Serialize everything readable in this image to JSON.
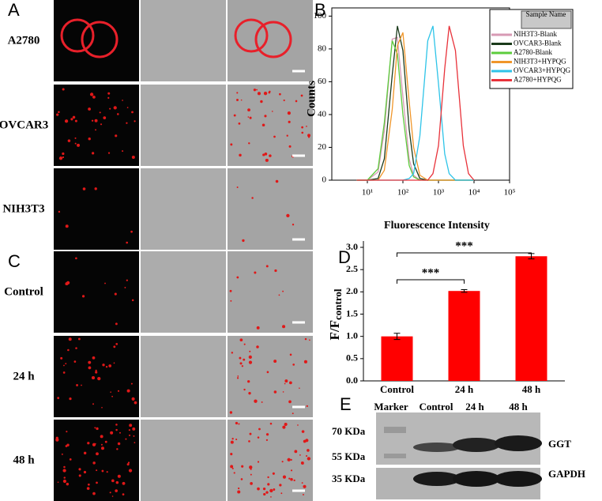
{
  "panels": {
    "a_label": "A",
    "a_rows": [
      "A2780",
      "OVCAR3",
      "NIH3T3"
    ],
    "c_label": "C",
    "c_rows": [
      "Control",
      "24 h",
      "48 h"
    ]
  },
  "chart_data": [
    {
      "type": "line",
      "panel_label": "B",
      "y_label": "Counts",
      "legend_title": "Sample Name",
      "log_x": true,
      "x": [
        5,
        10,
        20,
        30,
        50,
        70,
        100,
        150,
        200,
        300,
        500,
        700,
        1000,
        1500,
        2000,
        3000,
        5000,
        7000,
        10000
      ],
      "xlim": [
        1,
        100000
      ],
      "xticks": [
        {
          "value": 10,
          "label": "10¹"
        },
        {
          "value": 100,
          "label": "10²"
        },
        {
          "value": 1000,
          "label": "10³"
        },
        {
          "value": 10000,
          "label": "10⁴"
        },
        {
          "value": 100000,
          "label": "10⁵"
        }
      ],
      "ylim": [
        0,
        105
      ],
      "yticks": [
        0,
        20,
        40,
        60,
        80,
        100
      ],
      "series": [
        {
          "name": "NIH3T3-Blank",
          "color": "#d79ab4",
          "values": [
            0,
            0,
            5,
            30,
            86,
            87,
            51,
            13,
            3,
            0,
            0,
            0,
            0,
            0,
            0,
            0,
            0,
            0,
            0
          ]
        },
        {
          "name": "OVCAR3-Blank",
          "color": "#1a3a1a",
          "values": [
            0,
            0,
            1,
            13,
            64,
            94,
            79,
            31,
            10,
            1,
            0,
            0,
            0,
            0,
            0,
            0,
            0,
            0,
            0
          ]
        },
        {
          "name": "A2780-Blank",
          "color": "#5ccc3c",
          "values": [
            0,
            0,
            7,
            35,
            85,
            77,
            40,
            9,
            2,
            0,
            0,
            0,
            0,
            0,
            0,
            0,
            0,
            0,
            0
          ]
        },
        {
          "name": "NIH3T3+HYPQG",
          "color": "#f0962a",
          "values": [
            0,
            0,
            0,
            6,
            43,
            82,
            90,
            48,
            20,
            3,
            0,
            0,
            0,
            0,
            0,
            0,
            0,
            0,
            0
          ]
        },
        {
          "name": "OVCAR3+HYPQG",
          "color": "#2ec4e8",
          "values": [
            0,
            0,
            0,
            0,
            0,
            0,
            0,
            1,
            4,
            27,
            85,
            94,
            59,
            16,
            4,
            0,
            0,
            0,
            0
          ]
        },
        {
          "name": "A2780+HYPQG",
          "color": "#e8323a",
          "values": [
            0,
            0,
            0,
            0,
            0,
            0,
            0,
            0,
            0,
            0,
            0,
            4,
            21,
            68,
            94,
            79,
            21,
            4,
            0
          ]
        }
      ]
    },
    {
      "type": "bar",
      "panel_label": "D",
      "title": "Fluorescence Intensity",
      "y_label": "F/F",
      "y_label_sub": "control",
      "categories": [
        "Control",
        "24 h",
        "48 h"
      ],
      "values": [
        1.0,
        2.02,
        2.8
      ],
      "errors": [
        0.07,
        0.03,
        0.06
      ],
      "color": "#ff0000",
      "ylim": [
        0,
        3
      ],
      "yticks": [
        {
          "value": 0,
          "label": "0.0"
        },
        {
          "value": 0.5,
          "label": "0.5"
        },
        {
          "value": 1,
          "label": "1.0"
        },
        {
          "value": 1.5,
          "label": "1.5"
        },
        {
          "value": 2,
          "label": "2.0"
        },
        {
          "value": 2.5,
          "label": "2.5"
        },
        {
          "value": 3,
          "label": "3.0"
        }
      ],
      "annotations": [
        "***",
        "***"
      ]
    }
  ],
  "blot": {
    "label": "E",
    "lanes": [
      "Marker",
      "Control",
      "24 h",
      "48 h"
    ],
    "markers": [
      "70 KDa",
      "55 KDa",
      "35 KDa"
    ],
    "proteins": [
      "GGT",
      "GAPDH"
    ]
  }
}
